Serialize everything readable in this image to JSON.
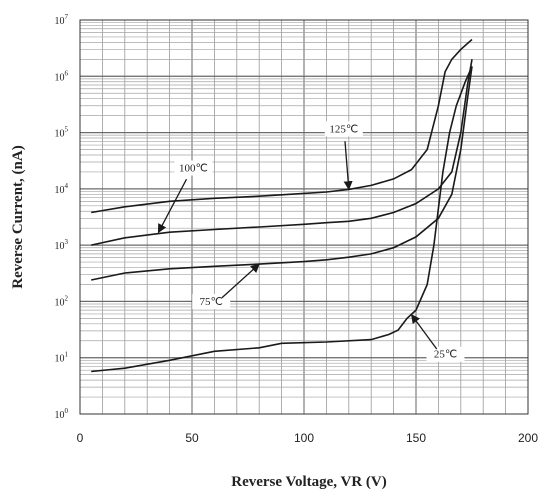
{
  "chart_data": {
    "type": "line",
    "title": "",
    "xlabel": "Reverse Voltage, VR (V)",
    "ylabel": "Reverse Current, (nA)",
    "xlim": [
      0,
      200
    ],
    "ylim": [
      1,
      10000000
    ],
    "yscale": "log",
    "grid": true,
    "xticks": [
      0,
      50,
      100,
      150,
      200
    ],
    "yticks": [
      {
        "base": "10",
        "exp": "0",
        "value": 1
      },
      {
        "base": "10",
        "exp": "1",
        "value": 10
      },
      {
        "base": "10",
        "exp": "2",
        "value": 100
      },
      {
        "base": "10",
        "exp": "3",
        "value": 1000
      },
      {
        "base": "10",
        "exp": "4",
        "value": 10000
      },
      {
        "base": "10",
        "exp": "5",
        "value": 100000
      },
      {
        "base": "10",
        "exp": "6",
        "value": 1000000
      },
      {
        "base": "10",
        "exp": "7",
        "value": 10000000
      }
    ],
    "series": [
      {
        "name": "125℃",
        "x": [
          5,
          20,
          40,
          60,
          80,
          100,
          110,
          120,
          130,
          140,
          148,
          155,
          160,
          163,
          166,
          170,
          175
        ],
        "y": [
          3800,
          4800,
          6000,
          6800,
          7400,
          8300,
          8800,
          9800,
          11500,
          15000,
          22000,
          50000,
          300000,
          1200000,
          2000000,
          3000000,
          4500000
        ]
      },
      {
        "name": "100℃",
        "x": [
          5,
          20,
          40,
          60,
          80,
          100,
          110,
          120,
          130,
          140,
          150,
          160,
          166,
          170,
          173,
          175
        ],
        "y": [
          1000,
          1350,
          1700,
          1900,
          2100,
          2350,
          2500,
          2650,
          3000,
          3800,
          5500,
          10000,
          20000,
          100000,
          700000,
          2000000
        ]
      },
      {
        "name": "75℃",
        "x": [
          5,
          20,
          40,
          60,
          80,
          100,
          110,
          120,
          130,
          140,
          150,
          160,
          166,
          170,
          173,
          175
        ],
        "y": [
          240,
          320,
          380,
          420,
          460,
          510,
          550,
          610,
          700,
          900,
          1400,
          3000,
          8000,
          50000,
          400000,
          1500000
        ]
      },
      {
        "name": "25℃",
        "x": [
          5,
          20,
          40,
          60,
          80,
          90,
          110,
          130,
          138,
          142,
          146,
          150,
          155,
          158,
          162,
          165,
          168,
          172,
          175
        ],
        "y": [
          5.7,
          6.5,
          9,
          13,
          15,
          18,
          19,
          21,
          26,
          31,
          50,
          70,
          200,
          1000,
          20000,
          100000,
          300000,
          800000,
          1500000
        ]
      }
    ],
    "annotations": [
      {
        "text": "125℃",
        "series": "125℃",
        "x": 120,
        "y": 9800
      },
      {
        "text": "100℃",
        "series": "100℃",
        "x": 35,
        "y": 1680
      },
      {
        "text": "75℃",
        "series": "75℃",
        "x": 80,
        "y": 460
      },
      {
        "text": "25℃",
        "series": "25℃",
        "x": 148,
        "y": 58
      }
    ]
  }
}
